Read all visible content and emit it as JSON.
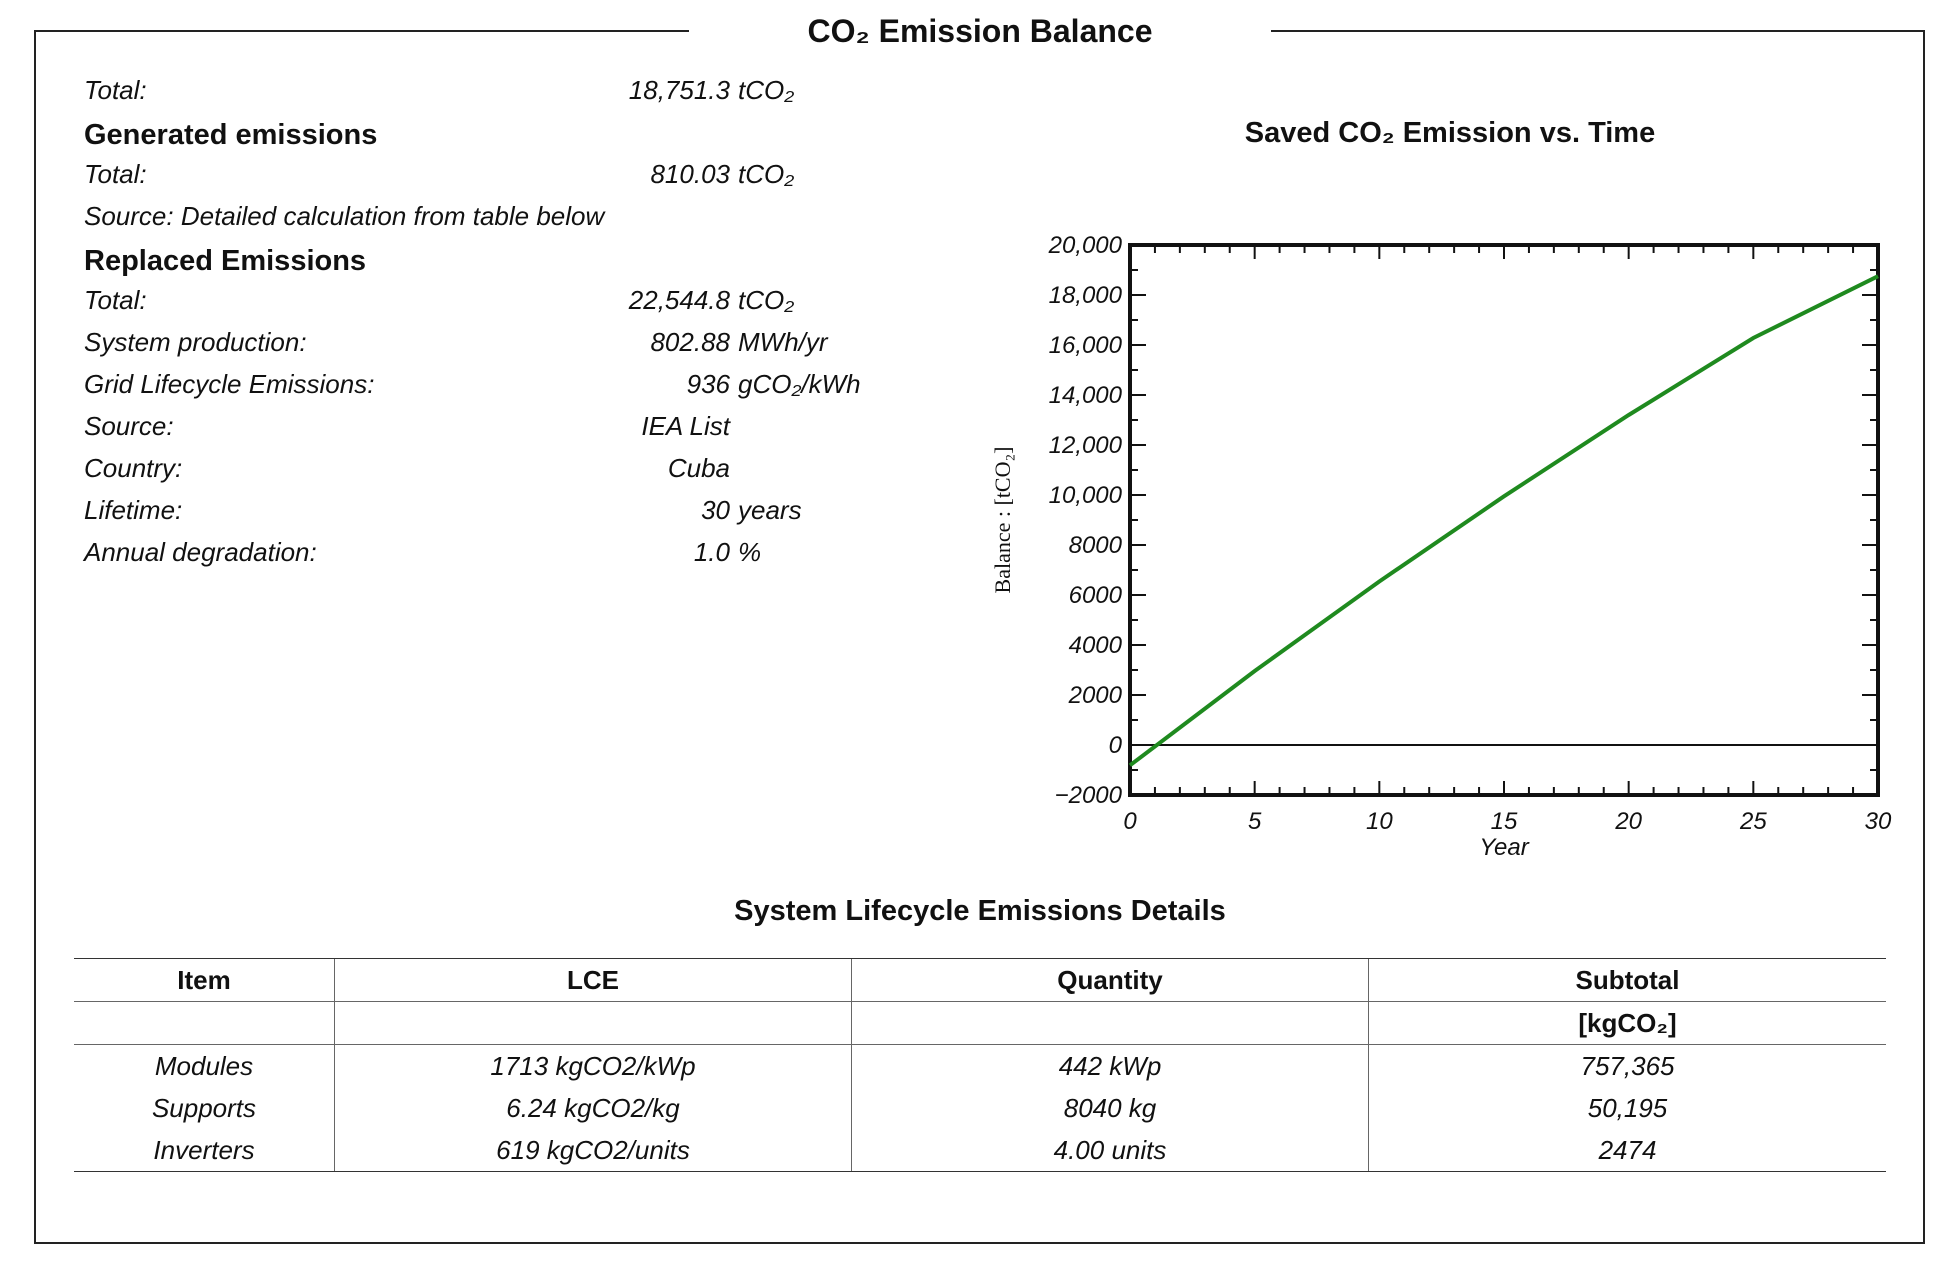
{
  "title": "CO₂  Emission  Balance",
  "summary": {
    "total_label": "Total:",
    "total_value": "18,751.3",
    "total_unit": "tCO₂"
  },
  "generated": {
    "heading": "Generated emissions",
    "total_label": "Total:",
    "total_value": "810.03",
    "total_unit": "tCO₂",
    "source_text": "Source: Detailed calculation from table below"
  },
  "replaced": {
    "heading": "Replaced Emissions",
    "rows": [
      {
        "label": "Total:",
        "value": "22,544.8",
        "unit": "tCO₂"
      },
      {
        "label": "System production:",
        "value": "802.88",
        "unit": "MWh/yr"
      },
      {
        "label": "Grid Lifecycle Emissions:",
        "value": "936",
        "unit": "gCO₂/kWh"
      },
      {
        "label": "Source:",
        "value": "IEA List",
        "unit": ""
      },
      {
        "label": "Country:",
        "value": "Cuba",
        "unit": ""
      },
      {
        "label": "Lifetime:",
        "value": "30",
        "unit": "years"
      },
      {
        "label": "Annual degradation:",
        "value": "1.0",
        "unit": "%"
      }
    ]
  },
  "chart_data": {
    "type": "line",
    "title": "Saved CO₂ Emission vs. Time",
    "xlabel": "Year",
    "ylabel": "Balance : [tCO₂]",
    "xlim": [
      0,
      30
    ],
    "ylim": [
      -2000,
      20000
    ],
    "x_ticks": [
      "0",
      "5",
      "10",
      "15",
      "20",
      "25",
      "30"
    ],
    "y_ticks": [
      "−2000",
      "0",
      "2000",
      "4000",
      "6000",
      "8000",
      "10,000",
      "12,000",
      "14,000",
      "16,000",
      "18,000",
      "20,000"
    ],
    "grid": false,
    "series": [
      {
        "color": "#1f8a1f",
        "x": [
          0,
          5,
          10,
          15,
          20,
          25,
          30
        ],
        "y": [
          -810,
          2960,
          6540,
          9950,
          13200,
          16280,
          18751
        ]
      }
    ],
    "zero_line": true
  },
  "details": {
    "title": "System Lifecycle Emissions Details",
    "headers": [
      "Item",
      "LCE",
      "Quantity",
      "Subtotal"
    ],
    "subheader_unit": "[kgCO₂]",
    "rows": [
      [
        "Modules",
        "1713 kgCO2/kWp",
        "442 kWp",
        "757,365"
      ],
      [
        "Supports",
        "6.24 kgCO2/kg",
        "8040 kg",
        "50,195"
      ],
      [
        "Inverters",
        "619 kgCO2/units",
        "4.00 units",
        "2474"
      ]
    ]
  }
}
